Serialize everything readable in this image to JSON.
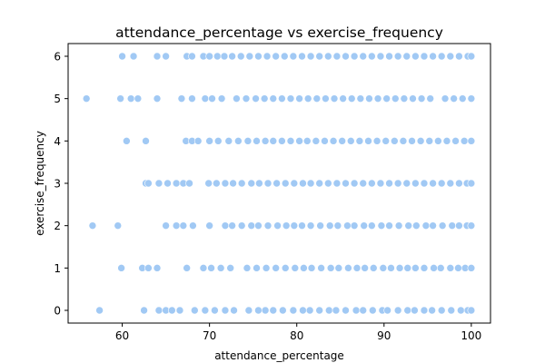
{
  "chart_data": {
    "type": "scatter",
    "title": "attendance_percentage vs exercise_frequency",
    "xlabel": "attendance_percentage",
    "ylabel": "exercise_frequency",
    "xlim": [
      53.8,
      102.2
    ],
    "ylim": [
      -0.3,
      6.3
    ],
    "x_ticks": [
      60,
      70,
      80,
      90,
      100
    ],
    "y_ticks": [
      0,
      1,
      2,
      3,
      4,
      5,
      6
    ],
    "x_tick_labels": [
      "60",
      "70",
      "80",
      "90",
      "100"
    ],
    "y_tick_labels": [
      "0",
      "1",
      "2",
      "3",
      "4",
      "5",
      "6"
    ],
    "grid": false,
    "legend": "none",
    "marker_color": "#a1c9f4",
    "marker_edge_color": "#ffffff",
    "series": [
      {
        "points": [
          {
            "x": 57.4,
            "y": 0
          },
          {
            "x": 62.5,
            "y": 0
          },
          {
            "x": 64.2,
            "y": 0
          },
          {
            "x": 65.0,
            "y": 0
          },
          {
            "x": 65.7,
            "y": 0
          },
          {
            "x": 66.6,
            "y": 0
          },
          {
            "x": 68.3,
            "y": 0
          },
          {
            "x": 69.5,
            "y": 0
          },
          {
            "x": 70.6,
            "y": 0
          },
          {
            "x": 71.8,
            "y": 0
          },
          {
            "x": 72.8,
            "y": 0
          },
          {
            "x": 74.5,
            "y": 0
          },
          {
            "x": 75.6,
            "y": 0
          },
          {
            "x": 76.4,
            "y": 0
          },
          {
            "x": 77.3,
            "y": 0
          },
          {
            "x": 78.4,
            "y": 0
          },
          {
            "x": 79.6,
            "y": 0
          },
          {
            "x": 80.7,
            "y": 0
          },
          {
            "x": 81.5,
            "y": 0
          },
          {
            "x": 82.6,
            "y": 0
          },
          {
            "x": 83.7,
            "y": 0
          },
          {
            "x": 84.5,
            "y": 0
          },
          {
            "x": 85.6,
            "y": 0
          },
          {
            "x": 86.8,
            "y": 0
          },
          {
            "x": 87.6,
            "y": 0
          },
          {
            "x": 88.7,
            "y": 0
          },
          {
            "x": 89.8,
            "y": 0
          },
          {
            "x": 90.4,
            "y": 0
          },
          {
            "x": 91.6,
            "y": 0
          },
          {
            "x": 92.7,
            "y": 0
          },
          {
            "x": 93.5,
            "y": 0
          },
          {
            "x": 94.6,
            "y": 0
          },
          {
            "x": 95.5,
            "y": 0
          },
          {
            "x": 96.6,
            "y": 0
          },
          {
            "x": 97.7,
            "y": 0
          },
          {
            "x": 98.8,
            "y": 0
          },
          {
            "x": 99.6,
            "y": 0
          },
          {
            "x": 100.0,
            "y": 0
          },
          {
            "x": 59.9,
            "y": 1
          },
          {
            "x": 62.3,
            "y": 1
          },
          {
            "x": 63.0,
            "y": 1
          },
          {
            "x": 64.0,
            "y": 1
          },
          {
            "x": 67.4,
            "y": 1
          },
          {
            "x": 69.3,
            "y": 1
          },
          {
            "x": 70.2,
            "y": 1
          },
          {
            "x": 71.3,
            "y": 1
          },
          {
            "x": 72.4,
            "y": 1
          },
          {
            "x": 74.3,
            "y": 1
          },
          {
            "x": 75.4,
            "y": 1
          },
          {
            "x": 76.5,
            "y": 1
          },
          {
            "x": 77.6,
            "y": 1
          },
          {
            "x": 78.7,
            "y": 1
          },
          {
            "x": 79.8,
            "y": 1
          },
          {
            "x": 80.8,
            "y": 1
          },
          {
            "x": 81.7,
            "y": 1
          },
          {
            "x": 82.8,
            "y": 1
          },
          {
            "x": 83.9,
            "y": 1
          },
          {
            "x": 84.8,
            "y": 1
          },
          {
            "x": 85.9,
            "y": 1
          },
          {
            "x": 86.9,
            "y": 1
          },
          {
            "x": 87.8,
            "y": 1
          },
          {
            "x": 88.8,
            "y": 1
          },
          {
            "x": 89.9,
            "y": 1
          },
          {
            "x": 90.8,
            "y": 1
          },
          {
            "x": 91.8,
            "y": 1
          },
          {
            "x": 92.7,
            "y": 1
          },
          {
            "x": 93.6,
            "y": 1
          },
          {
            "x": 94.6,
            "y": 1
          },
          {
            "x": 95.7,
            "y": 1
          },
          {
            "x": 96.5,
            "y": 1
          },
          {
            "x": 97.6,
            "y": 1
          },
          {
            "x": 98.5,
            "y": 1
          },
          {
            "x": 99.3,
            "y": 1
          },
          {
            "x": 100.0,
            "y": 1
          },
          {
            "x": 56.6,
            "y": 2
          },
          {
            "x": 59.5,
            "y": 2
          },
          {
            "x": 65.0,
            "y": 2
          },
          {
            "x": 66.2,
            "y": 2
          },
          {
            "x": 67.0,
            "y": 2
          },
          {
            "x": 68.1,
            "y": 2
          },
          {
            "x": 70.0,
            "y": 2
          },
          {
            "x": 71.8,
            "y": 2
          },
          {
            "x": 72.6,
            "y": 2
          },
          {
            "x": 73.7,
            "y": 2
          },
          {
            "x": 74.8,
            "y": 2
          },
          {
            "x": 75.6,
            "y": 2
          },
          {
            "x": 76.7,
            "y": 2
          },
          {
            "x": 77.8,
            "y": 2
          },
          {
            "x": 78.8,
            "y": 2
          },
          {
            "x": 79.7,
            "y": 2
          },
          {
            "x": 80.6,
            "y": 2
          },
          {
            "x": 81.6,
            "y": 2
          },
          {
            "x": 82.7,
            "y": 2
          },
          {
            "x": 83.8,
            "y": 2
          },
          {
            "x": 84.7,
            "y": 2
          },
          {
            "x": 85.8,
            "y": 2
          },
          {
            "x": 86.6,
            "y": 2
          },
          {
            "x": 87.7,
            "y": 2
          },
          {
            "x": 88.6,
            "y": 2
          },
          {
            "x": 89.7,
            "y": 2
          },
          {
            "x": 90.6,
            "y": 2
          },
          {
            "x": 91.7,
            "y": 2
          },
          {
            "x": 92.8,
            "y": 2
          },
          {
            "x": 93.7,
            "y": 2
          },
          {
            "x": 94.8,
            "y": 2
          },
          {
            "x": 95.6,
            "y": 2
          },
          {
            "x": 96.7,
            "y": 2
          },
          {
            "x": 97.8,
            "y": 2
          },
          {
            "x": 98.6,
            "y": 2
          },
          {
            "x": 99.5,
            "y": 2
          },
          {
            "x": 100.0,
            "y": 2
          },
          {
            "x": 62.7,
            "y": 3
          },
          {
            "x": 63.0,
            "y": 3
          },
          {
            "x": 64.2,
            "y": 3
          },
          {
            "x": 65.2,
            "y": 3
          },
          {
            "x": 66.2,
            "y": 3
          },
          {
            "x": 67.0,
            "y": 3
          },
          {
            "x": 67.7,
            "y": 3
          },
          {
            "x": 69.9,
            "y": 3
          },
          {
            "x": 70.8,
            "y": 3
          },
          {
            "x": 71.8,
            "y": 3
          },
          {
            "x": 72.7,
            "y": 3
          },
          {
            "x": 73.7,
            "y": 3
          },
          {
            "x": 74.8,
            "y": 3
          },
          {
            "x": 75.7,
            "y": 3
          },
          {
            "x": 76.7,
            "y": 3
          },
          {
            "x": 77.7,
            "y": 3
          },
          {
            "x": 78.7,
            "y": 3
          },
          {
            "x": 79.7,
            "y": 3
          },
          {
            "x": 80.7,
            "y": 3
          },
          {
            "x": 81.6,
            "y": 3
          },
          {
            "x": 82.6,
            "y": 3
          },
          {
            "x": 83.6,
            "y": 3
          },
          {
            "x": 84.6,
            "y": 3
          },
          {
            "x": 85.6,
            "y": 3
          },
          {
            "x": 86.6,
            "y": 3
          },
          {
            "x": 87.6,
            "y": 3
          },
          {
            "x": 88.6,
            "y": 3
          },
          {
            "x": 89.6,
            "y": 3
          },
          {
            "x": 90.6,
            "y": 3
          },
          {
            "x": 91.6,
            "y": 3
          },
          {
            "x": 92.6,
            "y": 3
          },
          {
            "x": 93.6,
            "y": 3
          },
          {
            "x": 94.6,
            "y": 3
          },
          {
            "x": 95.6,
            "y": 3
          },
          {
            "x": 96.6,
            "y": 3
          },
          {
            "x": 97.6,
            "y": 3
          },
          {
            "x": 98.6,
            "y": 3
          },
          {
            "x": 99.5,
            "y": 3
          },
          {
            "x": 100.0,
            "y": 3
          },
          {
            "x": 60.5,
            "y": 4
          },
          {
            "x": 62.7,
            "y": 4
          },
          {
            "x": 67.3,
            "y": 4
          },
          {
            "x": 68.0,
            "y": 4
          },
          {
            "x": 68.7,
            "y": 4
          },
          {
            "x": 70.0,
            "y": 4
          },
          {
            "x": 71.0,
            "y": 4
          },
          {
            "x": 72.2,
            "y": 4
          },
          {
            "x": 73.3,
            "y": 4
          },
          {
            "x": 74.4,
            "y": 4
          },
          {
            "x": 75.4,
            "y": 4
          },
          {
            "x": 76.4,
            "y": 4
          },
          {
            "x": 77.3,
            "y": 4
          },
          {
            "x": 78.3,
            "y": 4
          },
          {
            "x": 79.3,
            "y": 4
          },
          {
            "x": 80.3,
            "y": 4
          },
          {
            "x": 81.2,
            "y": 4
          },
          {
            "x": 82.2,
            "y": 4
          },
          {
            "x": 83.2,
            "y": 4
          },
          {
            "x": 84.2,
            "y": 4
          },
          {
            "x": 85.2,
            "y": 4
          },
          {
            "x": 86.2,
            "y": 4
          },
          {
            "x": 87.2,
            "y": 4
          },
          {
            "x": 88.2,
            "y": 4
          },
          {
            "x": 89.2,
            "y": 4
          },
          {
            "x": 90.2,
            "y": 4
          },
          {
            "x": 91.2,
            "y": 4
          },
          {
            "x": 92.2,
            "y": 4
          },
          {
            "x": 93.2,
            "y": 4
          },
          {
            "x": 94.2,
            "y": 4
          },
          {
            "x": 95.2,
            "y": 4
          },
          {
            "x": 96.2,
            "y": 4
          },
          {
            "x": 97.2,
            "y": 4
          },
          {
            "x": 98.2,
            "y": 4
          },
          {
            "x": 99.2,
            "y": 4
          },
          {
            "x": 100.0,
            "y": 4
          },
          {
            "x": 55.9,
            "y": 5
          },
          {
            "x": 59.8,
            "y": 5
          },
          {
            "x": 61.0,
            "y": 5
          },
          {
            "x": 61.8,
            "y": 5
          },
          {
            "x": 64.0,
            "y": 5
          },
          {
            "x": 66.8,
            "y": 5
          },
          {
            "x": 68.0,
            "y": 5
          },
          {
            "x": 69.5,
            "y": 5
          },
          {
            "x": 70.3,
            "y": 5
          },
          {
            "x": 71.4,
            "y": 5
          },
          {
            "x": 73.1,
            "y": 5
          },
          {
            "x": 74.2,
            "y": 5
          },
          {
            "x": 75.3,
            "y": 5
          },
          {
            "x": 76.3,
            "y": 5
          },
          {
            "x": 77.3,
            "y": 5
          },
          {
            "x": 78.3,
            "y": 5
          },
          {
            "x": 79.3,
            "y": 5
          },
          {
            "x": 80.3,
            "y": 5
          },
          {
            "x": 81.3,
            "y": 5
          },
          {
            "x": 82.3,
            "y": 5
          },
          {
            "x": 83.3,
            "y": 5
          },
          {
            "x": 84.3,
            "y": 5
          },
          {
            "x": 85.3,
            "y": 5
          },
          {
            "x": 86.3,
            "y": 5
          },
          {
            "x": 87.3,
            "y": 5
          },
          {
            "x": 88.3,
            "y": 5
          },
          {
            "x": 89.3,
            "y": 5
          },
          {
            "x": 90.3,
            "y": 5
          },
          {
            "x": 91.3,
            "y": 5
          },
          {
            "x": 92.3,
            "y": 5
          },
          {
            "x": 93.3,
            "y": 5
          },
          {
            "x": 94.3,
            "y": 5
          },
          {
            "x": 95.3,
            "y": 5
          },
          {
            "x": 97.0,
            "y": 5
          },
          {
            "x": 98.0,
            "y": 5
          },
          {
            "x": 99.0,
            "y": 5
          },
          {
            "x": 100.0,
            "y": 5
          },
          {
            "x": 60.0,
            "y": 6
          },
          {
            "x": 61.3,
            "y": 6
          },
          {
            "x": 64.0,
            "y": 6
          },
          {
            "x": 65.0,
            "y": 6
          },
          {
            "x": 67.4,
            "y": 6
          },
          {
            "x": 68.0,
            "y": 6
          },
          {
            "x": 69.3,
            "y": 6
          },
          {
            "x": 70.0,
            "y": 6
          },
          {
            "x": 70.9,
            "y": 6
          },
          {
            "x": 71.7,
            "y": 6
          },
          {
            "x": 72.6,
            "y": 6
          },
          {
            "x": 73.6,
            "y": 6
          },
          {
            "x": 74.6,
            "y": 6
          },
          {
            "x": 75.6,
            "y": 6
          },
          {
            "x": 76.6,
            "y": 6
          },
          {
            "x": 77.6,
            "y": 6
          },
          {
            "x": 78.6,
            "y": 6
          },
          {
            "x": 79.6,
            "y": 6
          },
          {
            "x": 80.6,
            "y": 6
          },
          {
            "x": 81.6,
            "y": 6
          },
          {
            "x": 82.6,
            "y": 6
          },
          {
            "x": 83.6,
            "y": 6
          },
          {
            "x": 84.6,
            "y": 6
          },
          {
            "x": 85.6,
            "y": 6
          },
          {
            "x": 86.6,
            "y": 6
          },
          {
            "x": 87.6,
            "y": 6
          },
          {
            "x": 88.6,
            "y": 6
          },
          {
            "x": 89.6,
            "y": 6
          },
          {
            "x": 90.6,
            "y": 6
          },
          {
            "x": 91.6,
            "y": 6
          },
          {
            "x": 92.6,
            "y": 6
          },
          {
            "x": 93.6,
            "y": 6
          },
          {
            "x": 94.6,
            "y": 6
          },
          {
            "x": 95.6,
            "y": 6
          },
          {
            "x": 96.6,
            "y": 6
          },
          {
            "x": 97.6,
            "y": 6
          },
          {
            "x": 98.6,
            "y": 6
          },
          {
            "x": 99.6,
            "y": 6
          },
          {
            "x": 100.0,
            "y": 6
          }
        ]
      }
    ]
  }
}
